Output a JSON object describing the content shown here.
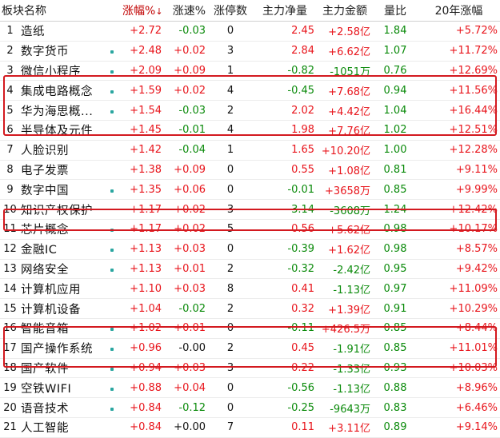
{
  "headers": {
    "name": "板块名称",
    "pct": "涨幅%",
    "pct_sort_icon": "↓",
    "speed": "涨速%",
    "limit_up": "涨停数",
    "main_net": "主力净量",
    "main_amount": "主力金额",
    "volume_ratio": "量比",
    "yr20": "20年涨幅"
  },
  "highlight_color": "#d3191f",
  "rows": [
    {
      "idx": "1",
      "name": "造纸",
      "dot": false,
      "pct": "+2.72",
      "speed": "-0.03",
      "limit_up": "0",
      "main_net": "2.45",
      "main_amount": "+2.58亿",
      "volume_ratio": "1.84",
      "yr20": "+5.72%"
    },
    {
      "idx": "2",
      "name": "数字货币",
      "dot": true,
      "pct": "+2.48",
      "speed": "+0.02",
      "limit_up": "3",
      "main_net": "2.84",
      "main_amount": "+6.62亿",
      "volume_ratio": "1.07",
      "yr20": "+11.72%"
    },
    {
      "idx": "3",
      "name": "微信小程序",
      "dot": true,
      "pct": "+2.09",
      "speed": "+0.09",
      "limit_up": "1",
      "main_net": "-0.82",
      "main_amount": "-1051万",
      "volume_ratio": "0.76",
      "yr20": "+12.69%"
    },
    {
      "idx": "4",
      "name": "集成电路概念",
      "dot": true,
      "pct": "+1.59",
      "speed": "+0.02",
      "limit_up": "4",
      "main_net": "-0.45",
      "main_amount": "+7.68亿",
      "volume_ratio": "0.94",
      "yr20": "+11.56%"
    },
    {
      "idx": "5",
      "name": "华为海思概...",
      "dot": true,
      "pct": "+1.54",
      "speed": "-0.03",
      "limit_up": "2",
      "main_net": "2.02",
      "main_amount": "+4.42亿",
      "volume_ratio": "1.04",
      "yr20": "+16.44%"
    },
    {
      "idx": "6",
      "name": "半导体及元件",
      "dot": false,
      "pct": "+1.45",
      "speed": "-0.01",
      "limit_up": "4",
      "main_net": "1.98",
      "main_amount": "+7.76亿",
      "volume_ratio": "1.02",
      "yr20": "+12.51%"
    },
    {
      "idx": "7",
      "name": "人脸识别",
      "dot": false,
      "pct": "+1.42",
      "speed": "-0.04",
      "limit_up": "1",
      "main_net": "1.65",
      "main_amount": "+10.20亿",
      "volume_ratio": "1.00",
      "yr20": "+12.28%"
    },
    {
      "idx": "8",
      "name": "电子发票",
      "dot": false,
      "pct": "+1.38",
      "speed": "+0.09",
      "limit_up": "0",
      "main_net": "0.55",
      "main_amount": "+1.08亿",
      "volume_ratio": "0.81",
      "yr20": "+9.11%"
    },
    {
      "idx": "9",
      "name": "数字中国",
      "dot": true,
      "pct": "+1.35",
      "speed": "+0.06",
      "limit_up": "0",
      "main_net": "-0.01",
      "main_amount": "+3658万",
      "volume_ratio": "0.85",
      "yr20": "+9.99%"
    },
    {
      "idx": "10",
      "name": "知识产权保护",
      "dot": false,
      "pct": "+1.17",
      "speed": "+0.02",
      "limit_up": "3",
      "main_net": "-3.14",
      "main_amount": "-3608万",
      "volume_ratio": "1.24",
      "yr20": "+12.42%"
    },
    {
      "idx": "11",
      "name": "芯片概念",
      "dot": true,
      "pct": "+1.17",
      "speed": "+0.02",
      "limit_up": "5",
      "main_net": "0.56",
      "main_amount": "+5.62亿",
      "volume_ratio": "0.98",
      "yr20": "+10.17%"
    },
    {
      "idx": "12",
      "name": "金融IC",
      "dot": true,
      "pct": "+1.13",
      "speed": "+0.03",
      "limit_up": "0",
      "main_net": "-0.39",
      "main_amount": "+1.62亿",
      "volume_ratio": "0.98",
      "yr20": "+8.57%"
    },
    {
      "idx": "13",
      "name": "网络安全",
      "dot": true,
      "pct": "+1.13",
      "speed": "+0.01",
      "limit_up": "2",
      "main_net": "-0.32",
      "main_amount": "-2.42亿",
      "volume_ratio": "0.95",
      "yr20": "+9.42%"
    },
    {
      "idx": "14",
      "name": "计算机应用",
      "dot": false,
      "pct": "+1.10",
      "speed": "+0.03",
      "limit_up": "8",
      "main_net": "0.41",
      "main_amount": "-1.13亿",
      "volume_ratio": "0.97",
      "yr20": "+11.09%"
    },
    {
      "idx": "15",
      "name": "计算机设备",
      "dot": false,
      "pct": "+1.04",
      "speed": "-0.02",
      "limit_up": "2",
      "main_net": "0.32",
      "main_amount": "+1.39亿",
      "volume_ratio": "0.91",
      "yr20": "+10.29%"
    },
    {
      "idx": "16",
      "name": "智能音箱",
      "dot": true,
      "pct": "+1.02",
      "speed": "+0.01",
      "limit_up": "0",
      "main_net": "-0.11",
      "main_amount": "+426.5万",
      "volume_ratio": "0.85",
      "yr20": "+8.44%"
    },
    {
      "idx": "17",
      "name": "国产操作系统",
      "dot": true,
      "pct": "+0.96",
      "speed": "-0.00",
      "limit_up": "2",
      "main_net": "0.45",
      "main_amount": "-1.91亿",
      "volume_ratio": "0.85",
      "yr20": "+11.01%"
    },
    {
      "idx": "18",
      "name": "国产软件",
      "dot": true,
      "pct": "+0.94",
      "speed": "+0.03",
      "limit_up": "3",
      "main_net": "0.22",
      "main_amount": "-1.33亿",
      "volume_ratio": "0.93",
      "yr20": "+10.03%"
    },
    {
      "idx": "19",
      "name": "空铁WIFI",
      "dot": true,
      "pct": "+0.88",
      "speed": "+0.04",
      "limit_up": "0",
      "main_net": "-0.56",
      "main_amount": "-1.13亿",
      "volume_ratio": "0.88",
      "yr20": "+8.96%"
    },
    {
      "idx": "20",
      "name": "语音技术",
      "dot": true,
      "pct": "+0.84",
      "speed": "-0.12",
      "limit_up": "0",
      "main_net": "-0.25",
      "main_amount": "-9643万",
      "volume_ratio": "0.83",
      "yr20": "+6.46%"
    },
    {
      "idx": "21",
      "name": "人工智能",
      "dot": false,
      "pct": "+0.84",
      "speed": "+0.00",
      "limit_up": "7",
      "main_net": "0.11",
      "main_amount": "+3.11亿",
      "volume_ratio": "0.89",
      "yr20": "+9.14%"
    }
  ]
}
